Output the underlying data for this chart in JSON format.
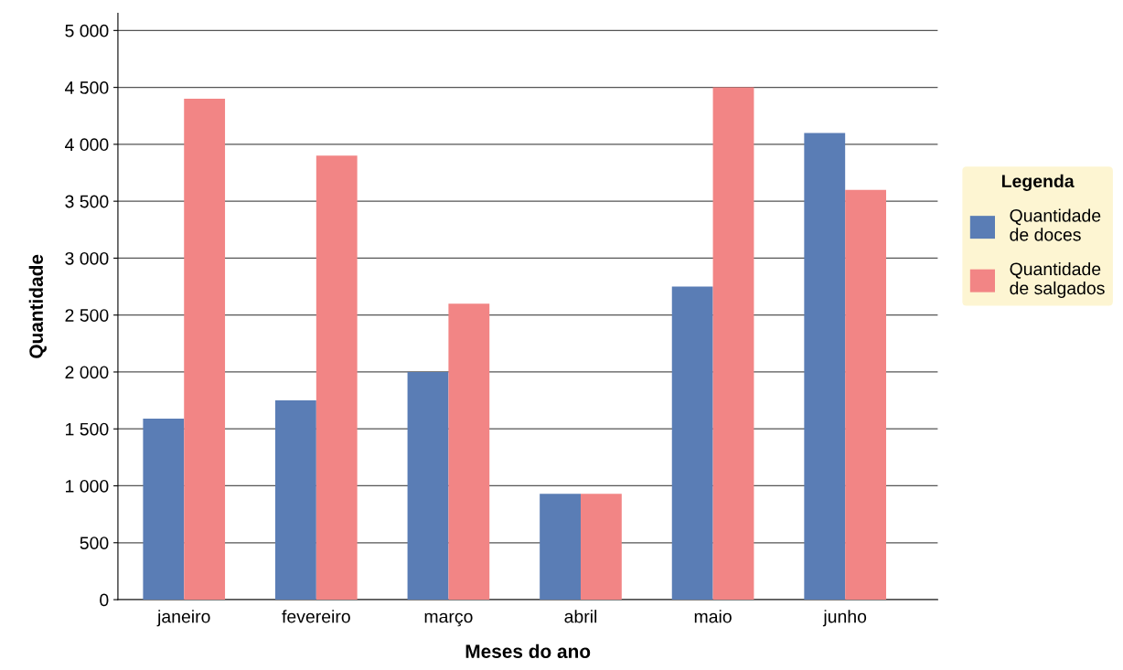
{
  "chart_data": {
    "type": "bar",
    "xlabel": "Meses do ano",
    "ylabel": "Quantidade",
    "legend_title": "Legenda",
    "categories": [
      "janeiro",
      "fevereiro",
      "março",
      "abril",
      "maio",
      "junho"
    ],
    "series": [
      {
        "name": "Quantidade\nde doces",
        "color": "#5a7db5",
        "values": [
          1590,
          1750,
          2000,
          930,
          2750,
          4100
        ]
      },
      {
        "name": "Quantidade\nde salgados",
        "color": "#f28585",
        "values": [
          4400,
          3900,
          2600,
          930,
          4500,
          3600
        ]
      }
    ],
    "ylim": [
      0,
      5150
    ],
    "yticks": [
      0,
      500,
      {
        "value": 1000,
        "label": "1 000"
      },
      {
        "value": 1500,
        "label": "1 500"
      },
      {
        "value": 2000,
        "label": "2 000"
      },
      {
        "value": 2500,
        "label": "2 500"
      },
      {
        "value": 3000,
        "label": "3 000"
      },
      {
        "value": 3500,
        "label": "3 500"
      },
      {
        "value": 4000,
        "label": "4 000"
      },
      {
        "value": 4500,
        "label": "4 500"
      },
      {
        "value": 5000,
        "label": "5 000"
      }
    ],
    "grid": "y",
    "legend": "right"
  }
}
